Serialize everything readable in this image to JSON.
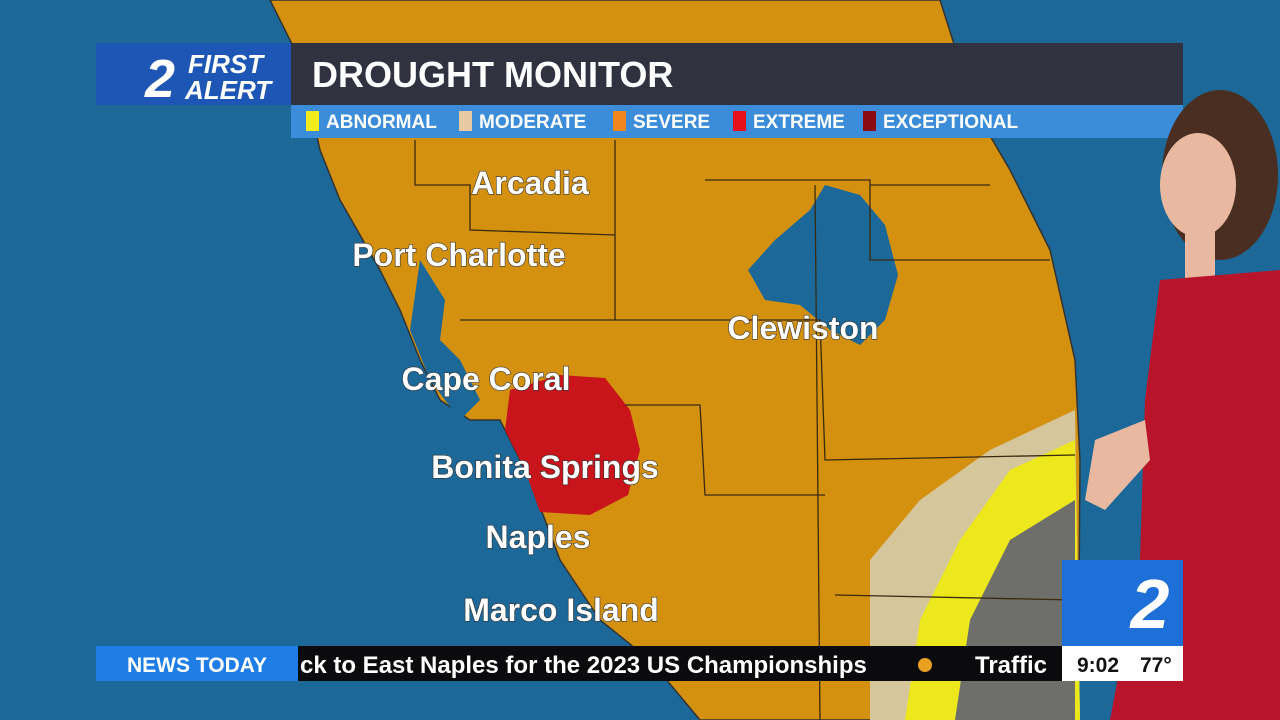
{
  "logo": {
    "number": "2",
    "line1": "FIRST",
    "line2": "ALERT"
  },
  "title": "DROUGHT MONITOR",
  "legend": [
    {
      "label": "ABNORMAL",
      "color": "#f3ec1c"
    },
    {
      "label": "MODERATE",
      "color": "#e7c9a2"
    },
    {
      "label": "SEVERE",
      "color": "#f0861e"
    },
    {
      "label": "EXTREME",
      "color": "#e5121b"
    },
    {
      "label": "EXCEPTIONAL",
      "color": "#8a0b12"
    }
  ],
  "cities": [
    "Arcadia",
    "Port Charlotte",
    "Clewiston",
    "Cape Coral",
    "Bonita Springs",
    "Naples",
    "Marco Island"
  ],
  "ticker": {
    "segment": "NEWS TODAY",
    "headline": "ck to East Naples for the 2023 US Championships",
    "next": "Traffic",
    "time": "9:02",
    "temperature": "77°"
  },
  "station_logo": "2"
}
